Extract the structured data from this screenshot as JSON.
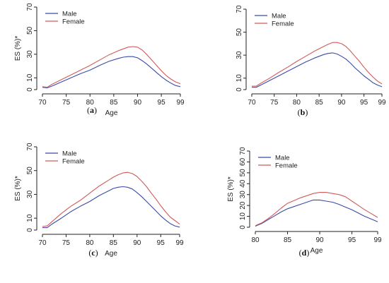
{
  "chart_data": [
    {
      "panel": "a",
      "type": "line",
      "xlabel": "Age",
      "ylabel": "ES (%)*",
      "xlim": [
        70,
        99
      ],
      "ylim": [
        0,
        70
      ],
      "xticks": [
        70,
        75,
        80,
        85,
        90,
        95,
        99
      ],
      "yticks": [
        0,
        10,
        30,
        50,
        70
      ],
      "legend": "top-left",
      "label": "(a)",
      "series": [
        {
          "name": "Male",
          "color": "#3b4ba8",
          "x": [
            70,
            71,
            72,
            74,
            76,
            78,
            80,
            82,
            84,
            86,
            87,
            88,
            89,
            90,
            91,
            92,
            93,
            94,
            95,
            96,
            97,
            98,
            99
          ],
          "y": [
            2,
            1.5,
            3,
            6.5,
            10,
            13.5,
            16.5,
            20.5,
            24,
            26.5,
            27.5,
            28,
            28,
            27,
            24.5,
            21.5,
            18,
            14.5,
            11,
            8,
            5.5,
            3.5,
            2.5
          ]
        },
        {
          "name": "Female",
          "color": "#d25a5a",
          "x": [
            70,
            71,
            72,
            74,
            76,
            78,
            80,
            82,
            84,
            86,
            87,
            88,
            89,
            90,
            91,
            92,
            93,
            94,
            95,
            96,
            97,
            98,
            99
          ],
          "y": [
            2.5,
            2,
            4.5,
            8.5,
            12.5,
            16.5,
            20.5,
            25,
            29.5,
            33,
            34.5,
            36,
            36.5,
            36,
            33.5,
            29.5,
            25,
            20.5,
            16,
            12,
            9,
            6.5,
            5
          ]
        }
      ]
    },
    {
      "panel": "b",
      "type": "line",
      "xlabel": "",
      "ylabel": "",
      "xlim": [
        70,
        99
      ],
      "ylim": [
        0,
        70
      ],
      "xticks": [
        70,
        75,
        80,
        85,
        90,
        95,
        99
      ],
      "yticks": [
        0,
        10,
        30,
        50,
        70
      ],
      "legend": "top-left",
      "label": "(b)",
      "series": [
        {
          "name": "Male",
          "color": "#3b4ba8",
          "x": [
            70,
            71,
            72,
            74,
            76,
            78,
            80,
            82,
            84,
            86,
            87,
            88,
            89,
            90,
            91,
            92,
            93,
            94,
            95,
            96,
            97,
            98,
            99
          ],
          "y": [
            2,
            2,
            4,
            8,
            12,
            16,
            20,
            24,
            27.5,
            30.5,
            31.5,
            32,
            31,
            29,
            26.5,
            23,
            19,
            15.5,
            12,
            9,
            6,
            4,
            2.5
          ]
        },
        {
          "name": "Female",
          "color": "#d25a5a",
          "x": [
            70,
            71,
            72,
            74,
            76,
            78,
            80,
            82,
            84,
            86,
            87,
            88,
            89,
            90,
            91,
            92,
            93,
            94,
            95,
            96,
            97,
            98,
            99
          ],
          "y": [
            3,
            3,
            5.5,
            10,
            15,
            19.5,
            24.5,
            29,
            33.5,
            37.5,
            39.5,
            41,
            41,
            40,
            37.5,
            33.5,
            29,
            24.5,
            19.5,
            15,
            11,
            7.5,
            5
          ]
        }
      ]
    },
    {
      "panel": "c",
      "type": "line",
      "xlabel": "Age",
      "ylabel": "ES (%)*",
      "xlim": [
        70,
        99
      ],
      "ylim": [
        0,
        70
      ],
      "xticks": [
        70,
        75,
        80,
        85,
        90,
        95,
        99
      ],
      "yticks": [
        0,
        10,
        30,
        50,
        70
      ],
      "legend": "top-left",
      "label": "(c)",
      "series": [
        {
          "name": "Male",
          "color": "#3b4ba8",
          "x": [
            70,
            71,
            72,
            74,
            76,
            78,
            80,
            82,
            84,
            85,
            86,
            87,
            88,
            89,
            90,
            91,
            92,
            93,
            94,
            95,
            96,
            97,
            98,
            99
          ],
          "y": [
            2,
            2,
            5,
            10,
            15.5,
            20,
            24,
            29,
            33,
            35,
            36,
            36.5,
            36,
            34.5,
            31.5,
            28,
            24,
            20,
            16,
            12,
            8.5,
            5.5,
            3.5,
            2.5
          ]
        },
        {
          "name": "Female",
          "color": "#d25a5a",
          "x": [
            70,
            71,
            72,
            74,
            76,
            78,
            80,
            82,
            84,
            85,
            86,
            87,
            88,
            89,
            90,
            91,
            92,
            93,
            94,
            95,
            96,
            97,
            98,
            99
          ],
          "y": [
            3,
            3.5,
            7,
            14,
            20,
            25,
            31,
            37,
            42,
            44.5,
            46.5,
            48,
            48.5,
            47.5,
            45,
            41,
            36.5,
            31,
            26,
            20.5,
            15.5,
            11,
            8,
            5
          ]
        }
      ]
    },
    {
      "panel": "d",
      "type": "line",
      "xlabel": "Age",
      "ylabel": "ES (%)*",
      "xlim": [
        80,
        99
      ],
      "ylim": [
        0,
        70
      ],
      "xticks": [
        80,
        85,
        90,
        95,
        99
      ],
      "yticks": [
        0,
        10,
        20,
        30,
        40,
        50,
        60,
        70
      ],
      "legend": "top-left",
      "label": "(d)",
      "series": [
        {
          "name": "Male",
          "color": "#3b4ba8",
          "x": [
            80,
            81,
            82,
            83,
            84,
            85,
            86,
            87,
            88,
            89,
            90,
            91,
            92,
            93,
            94,
            95,
            96,
            97,
            98,
            99
          ],
          "y": [
            1,
            3.5,
            7,
            10.5,
            14,
            17,
            19,
            21,
            23,
            25,
            25,
            24,
            23,
            21,
            18.5,
            16,
            13,
            10,
            7.5,
            5
          ]
        },
        {
          "name": "Female",
          "color": "#d25a5a",
          "x": [
            80,
            81,
            82,
            83,
            84,
            85,
            86,
            87,
            88,
            89,
            90,
            91,
            92,
            93,
            94,
            95,
            96,
            97,
            98,
            99
          ],
          "y": [
            1.5,
            4,
            8,
            12.5,
            17.5,
            22,
            24.5,
            27,
            29,
            31,
            32,
            32,
            31,
            30,
            28,
            24,
            20,
            16,
            12.5,
            9
          ]
        }
      ]
    }
  ]
}
